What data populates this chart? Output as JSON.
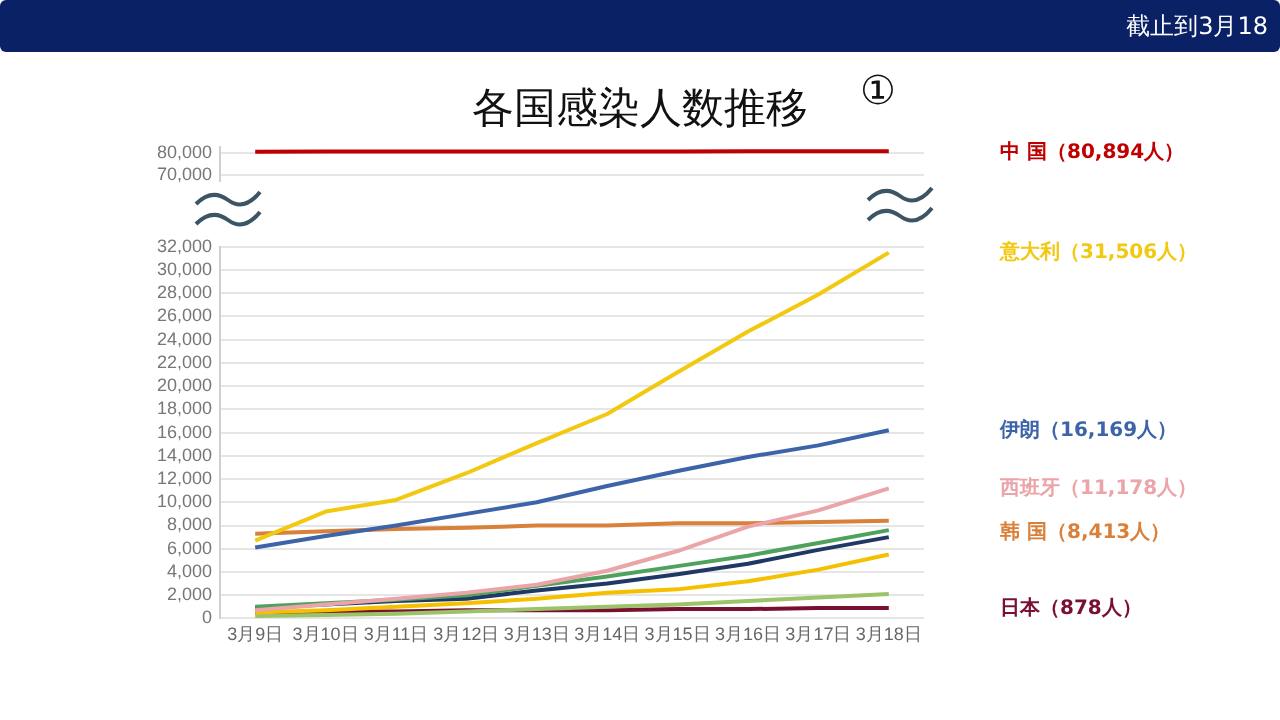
{
  "chart_data": [
    {
      "type": "line",
      "title": "各国感染人数推移",
      "annotations": [
        "截止到3月18",
        "①"
      ],
      "categories": [
        null,
        null,
        null,
        null,
        null,
        null,
        null,
        null,
        null,
        null
      ],
      "ylim": [
        67000,
        83000
      ],
      "yticks": [
        {
          "value": 70000,
          "label": "70,000"
        },
        {
          "value": 80000,
          "label": "80,000"
        }
      ],
      "tick_labels": "y",
      "grid": "y",
      "legend": "right",
      "marker": "none",
      "series": [
        {
          "name": "中 国（80,894人）",
          "color": "#c00000",
          "values": [
            80700,
            80800,
            80800,
            80800,
            80800,
            80800,
            80800,
            80900,
            80900,
            80900
          ]
        }
      ]
    },
    {
      "type": "line",
      "categories": [
        "3月9日",
        "3月10日",
        "3月11日",
        "3月12日",
        "3月13日",
        "3月14日",
        "3月15日",
        "3月16日",
        "3月17日",
        "3月18日"
      ],
      "ylim": [
        0,
        32000
      ],
      "yticks": [
        0,
        {
          "value": 2000,
          "label": "2,000"
        },
        {
          "value": 4000,
          "label": "4,000"
        },
        {
          "value": 6000,
          "label": "6,000"
        },
        {
          "value": 8000,
          "label": "8,000"
        },
        {
          "value": 10000,
          "label": "10,000"
        },
        {
          "value": 12000,
          "label": "12,000"
        },
        {
          "value": 14000,
          "label": "14,000"
        },
        {
          "value": 16000,
          "label": "16,000"
        },
        {
          "value": 18000,
          "label": "18,000"
        },
        {
          "value": 20000,
          "label": "20,000"
        },
        {
          "value": 22000,
          "label": "22,000"
        },
        {
          "value": 24000,
          "label": "24,000"
        },
        {
          "value": 26000,
          "label": "26,000"
        },
        {
          "value": 28000,
          "label": "28,000"
        },
        {
          "value": 30000,
          "label": "30,000"
        },
        {
          "value": 32000,
          "label": "32,000"
        }
      ],
      "grid": "y",
      "legend": "right",
      "marker": "none",
      "series": [
        {
          "name": "意大利（31,506人）",
          "color": "#f2c811",
          "values": [
            6700,
            9200,
            10200,
            12500,
            15100,
            17600,
            21200,
            24700,
            27900,
            31500
          ]
        },
        {
          "name": "伊朗（16,169人）",
          "color": "#3d63a8",
          "values": [
            6100,
            7100,
            8000,
            9000,
            10000,
            11400,
            12700,
            13900,
            14900,
            16200
          ]
        },
        {
          "name": "西班牙（11,178人）",
          "color": "#eba4a8",
          "values": [
            700,
            1200,
            1700,
            2200,
            2900,
            4100,
            5800,
            7900,
            9300,
            11200
          ]
        },
        {
          "name": "韩 国（8,413人）",
          "color": "#d9803a",
          "values": [
            7300,
            7500,
            7700,
            7800,
            8000,
            8000,
            8200,
            8200,
            8300,
            8400
          ]
        },
        {
          "color": "#4ea25e",
          "values": [
            1000,
            1300,
            1600,
            2000,
            2800,
            3600,
            4500,
            5400,
            6500,
            7600
          ]
        },
        {
          "color": "#1f3864",
          "values": [
            900,
            1200,
            1500,
            1700,
            2400,
            3000,
            3800,
            4700,
            5900,
            7000
          ]
        },
        {
          "color": "#f5c000",
          "values": [
            500,
            700,
            1000,
            1300,
            1700,
            2200,
            2500,
            3200,
            4200,
            5500
          ]
        },
        {
          "color": "#9cc36a",
          "values": [
            200,
            300,
            400,
            600,
            800,
            1000,
            1200,
            1500,
            1800,
            2100
          ]
        },
        {
          "name": "日本（878人）",
          "color": "#7a1030",
          "values": [
            500,
            600,
            600,
            700,
            700,
            700,
            800,
            800,
            900,
            900
          ]
        }
      ]
    }
  ]
}
